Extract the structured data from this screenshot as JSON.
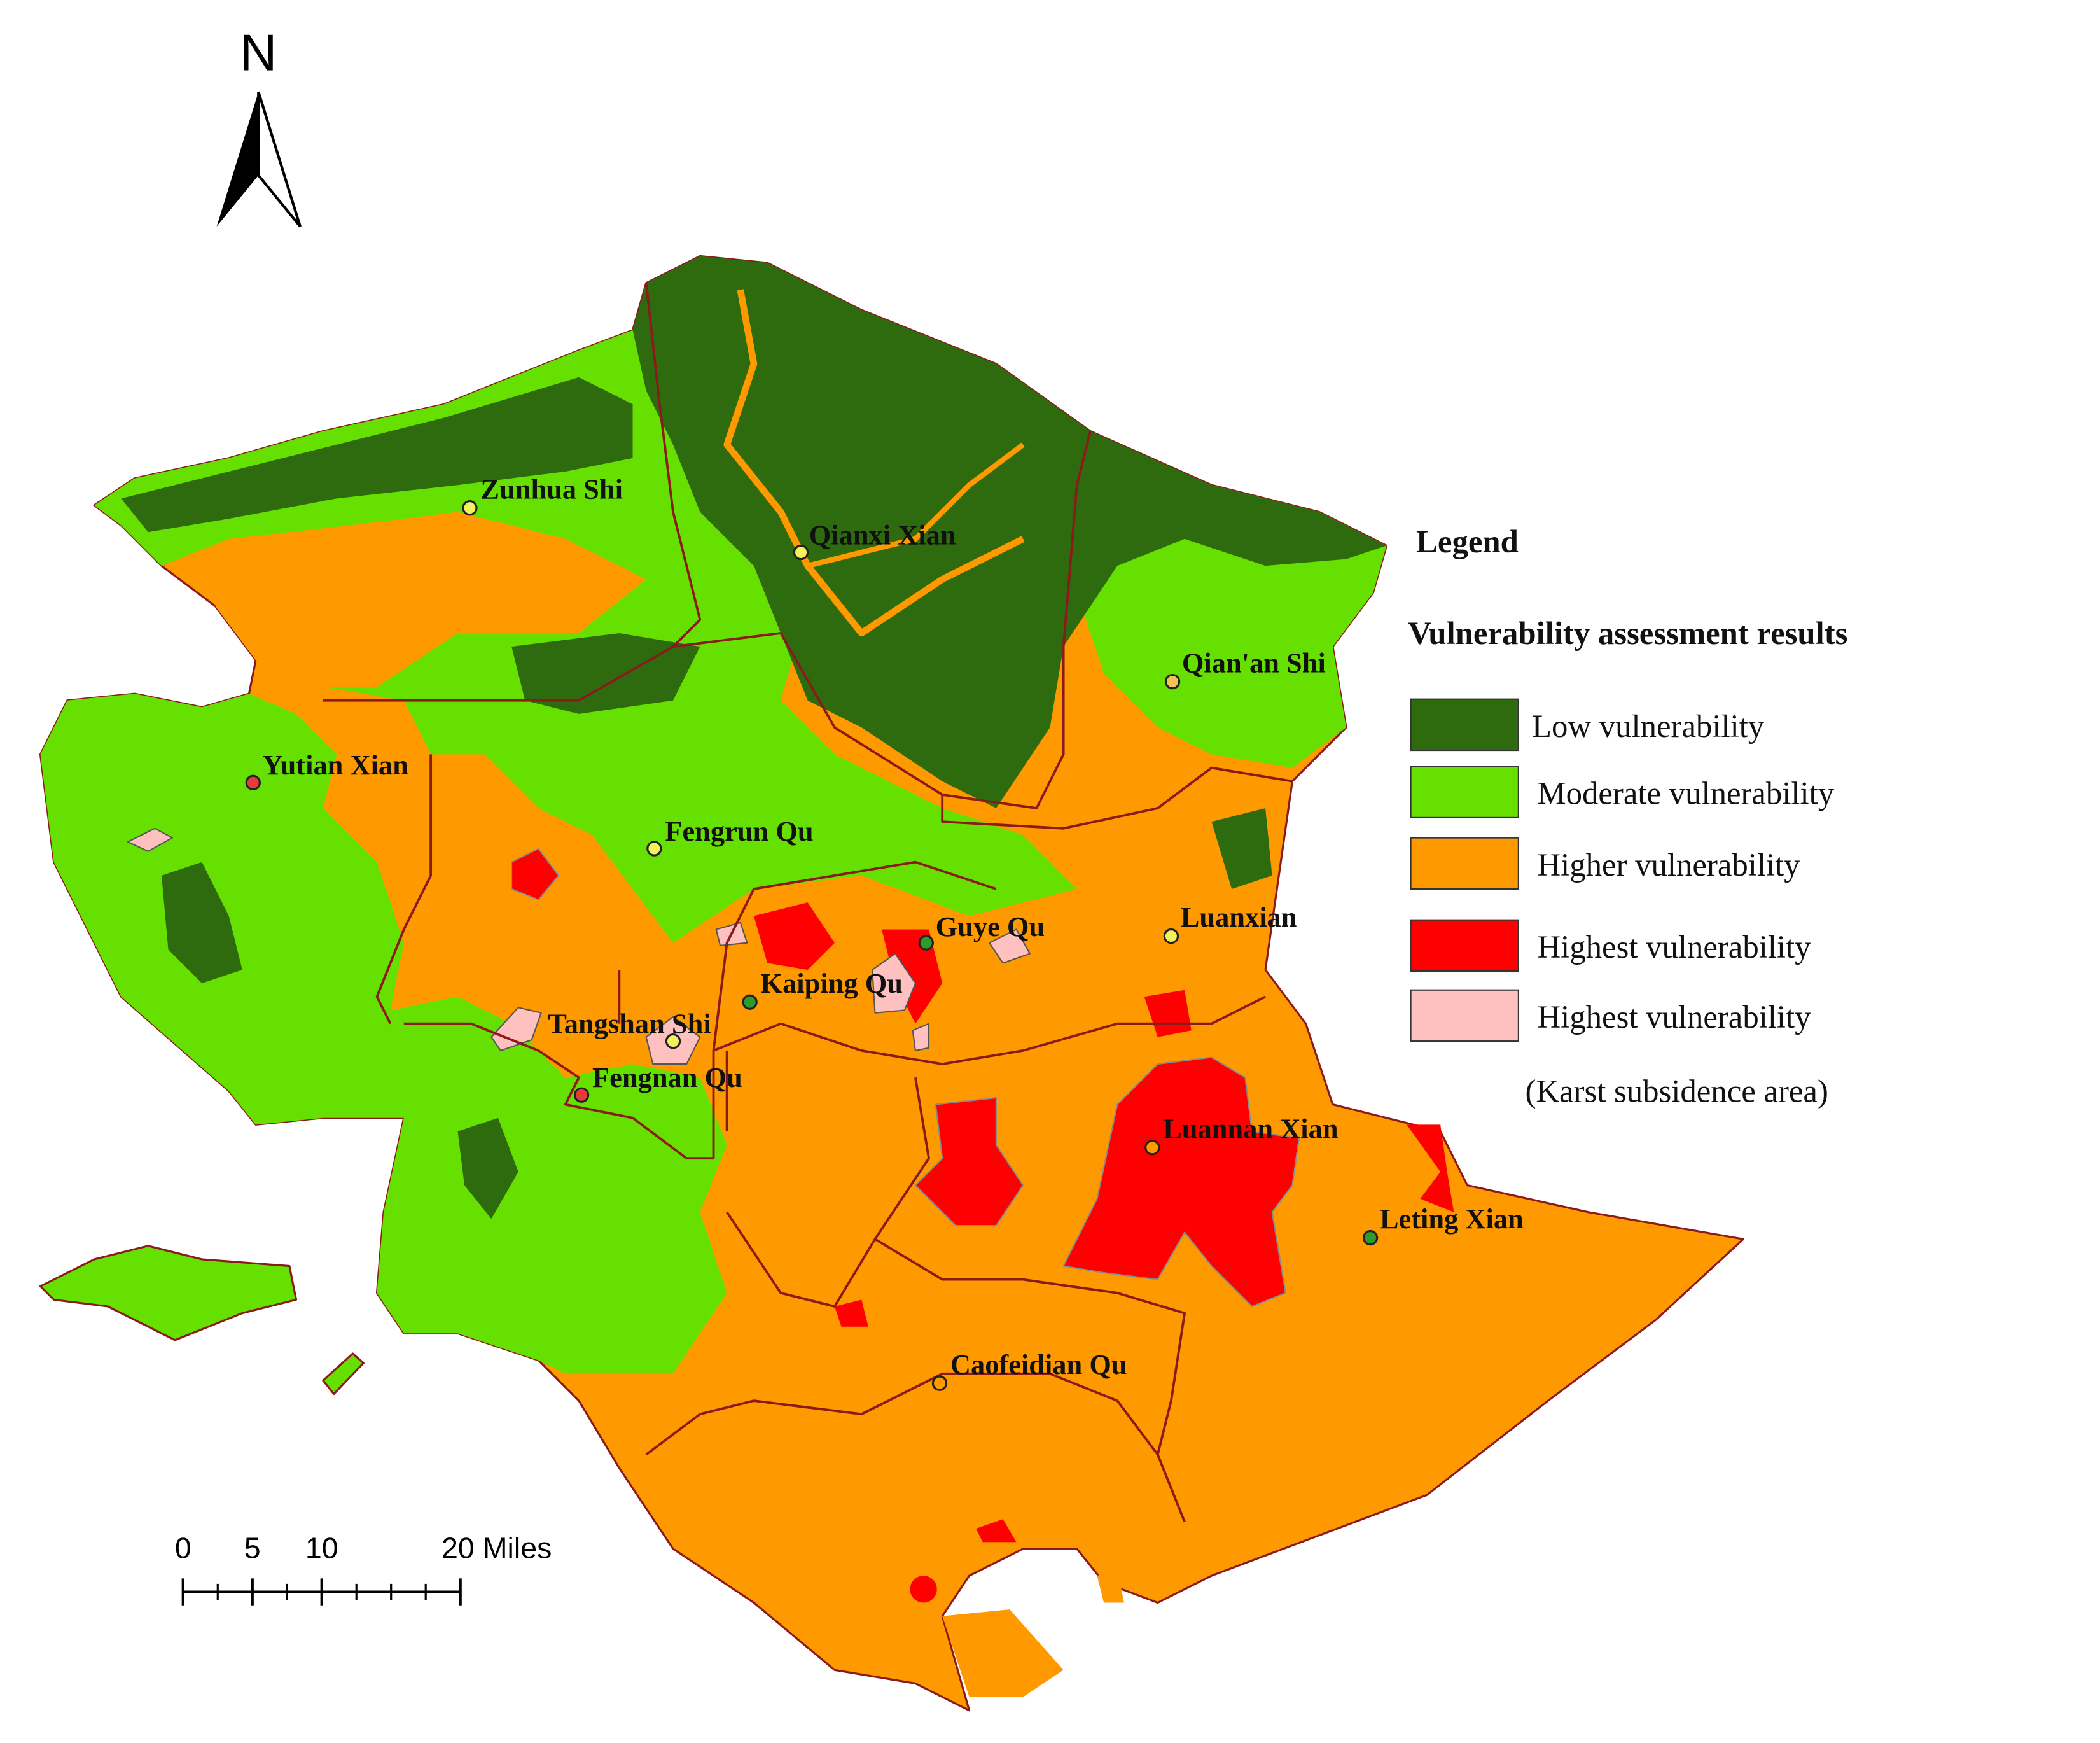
{
  "north_label": "N",
  "legend": {
    "title": "Legend",
    "subtitle": "Vulnerability assessment results",
    "items": [
      {
        "label": "Low vulnerability",
        "color": "#2e6b0f"
      },
      {
        "label": "Moderate vulnerability",
        "color": "#66e000"
      },
      {
        "label": "Higher vulnerability",
        "color": "#ff9900"
      },
      {
        "label": "Highest vulnerability",
        "color": "#ff0000"
      },
      {
        "label": "Highest vulnerability",
        "color": "#ffc0c0"
      }
    ],
    "note": "(Karst subsidence area)"
  },
  "places": [
    {
      "name": "Zunhua Shi",
      "dot_color": "#f2f25a"
    },
    {
      "name": "Qianxi Xian",
      "dot_color": "#f2f25a"
    },
    {
      "name": "Qian'an Shi",
      "dot_color": "#f2c25a"
    },
    {
      "name": "Yutian Xian",
      "dot_color": "#e83a3a"
    },
    {
      "name": "Fengrun Qu",
      "dot_color": "#f2f25a"
    },
    {
      "name": "Luanxian",
      "dot_color": "#f2f25a"
    },
    {
      "name": "Guye Qu",
      "dot_color": "#2e9b2e"
    },
    {
      "name": "Kaiping Qu",
      "dot_color": "#2e9b2e"
    },
    {
      "name": "Tangshan Shi",
      "dot_color": "#f2f25a"
    },
    {
      "name": "Fengnan Qu",
      "dot_color": "#e83a3a"
    },
    {
      "name": "Luannan Xian",
      "dot_color": "#ff9900"
    },
    {
      "name": "Leting Xian",
      "dot_color": "#2e9b2e"
    },
    {
      "name": "Caofeidian Qu",
      "dot_color": "#ff9900"
    }
  ],
  "scale_bar": {
    "ticks": [
      0,
      5,
      10,
      {
        "value": 20,
        "label": "20 Miles"
      }
    ]
  }
}
